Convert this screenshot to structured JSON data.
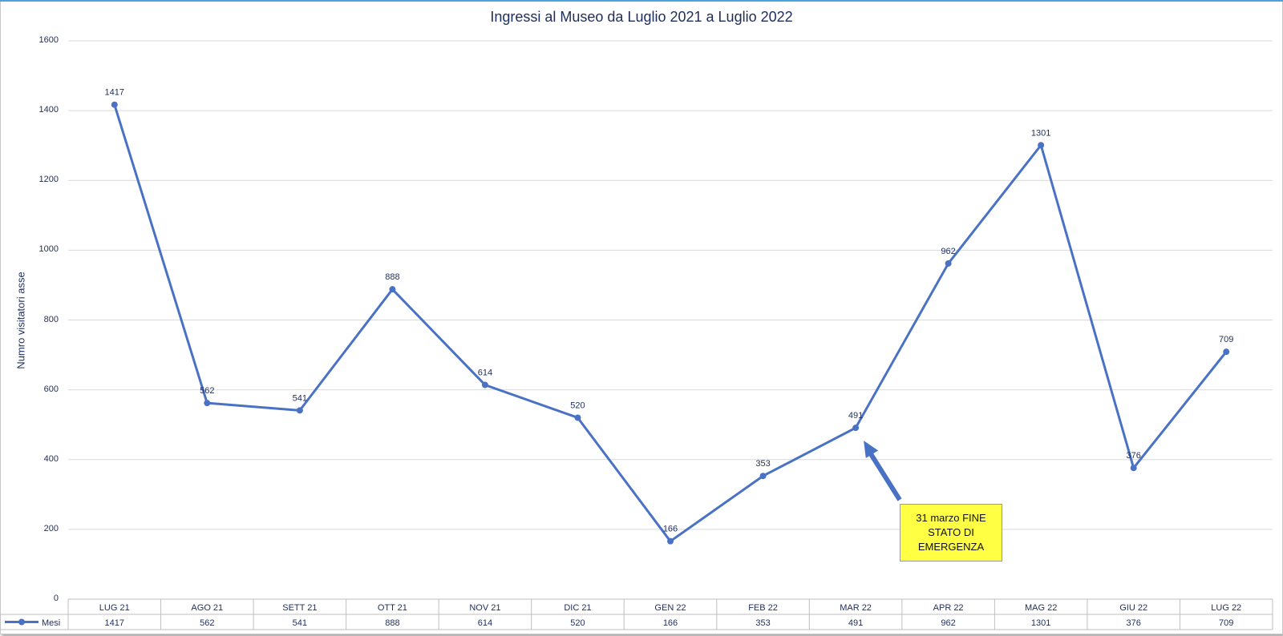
{
  "chart_data": {
    "type": "line",
    "title": "Ingressi al Museo da Luglio 2021 a Luglio 2022",
    "ylabel": "Numro visitatori asse",
    "xlabel": "",
    "categories": [
      "LUG 21",
      "AGO 21",
      "SETT 21",
      "OTT 21",
      "NOV 21",
      "DIC 21",
      "GEN 22",
      "FEB 22",
      "MAR 22",
      "APR 22",
      "MAG 22",
      "GIU 22",
      "LUG 22"
    ],
    "series": [
      {
        "name": "Mesi",
        "values": [
          1417,
          562,
          541,
          888,
          614,
          520,
          166,
          353,
          491,
          962,
          1301,
          376,
          709
        ]
      }
    ],
    "ylim": [
      0,
      1600
    ],
    "yticks": [
      0,
      200,
      400,
      600,
      800,
      1000,
      1200,
      1400,
      1600
    ],
    "grid": true,
    "data_table": true,
    "annotations": [
      {
        "text": "31 marzo FINE STATO DI EMERGENZA",
        "points_to": "MAR 22"
      }
    ],
    "colors": {
      "series": "#4a72c4",
      "annotation_fill": "#ffff44",
      "text": "#1f2d5a",
      "grid": "#d9d9d9"
    }
  }
}
